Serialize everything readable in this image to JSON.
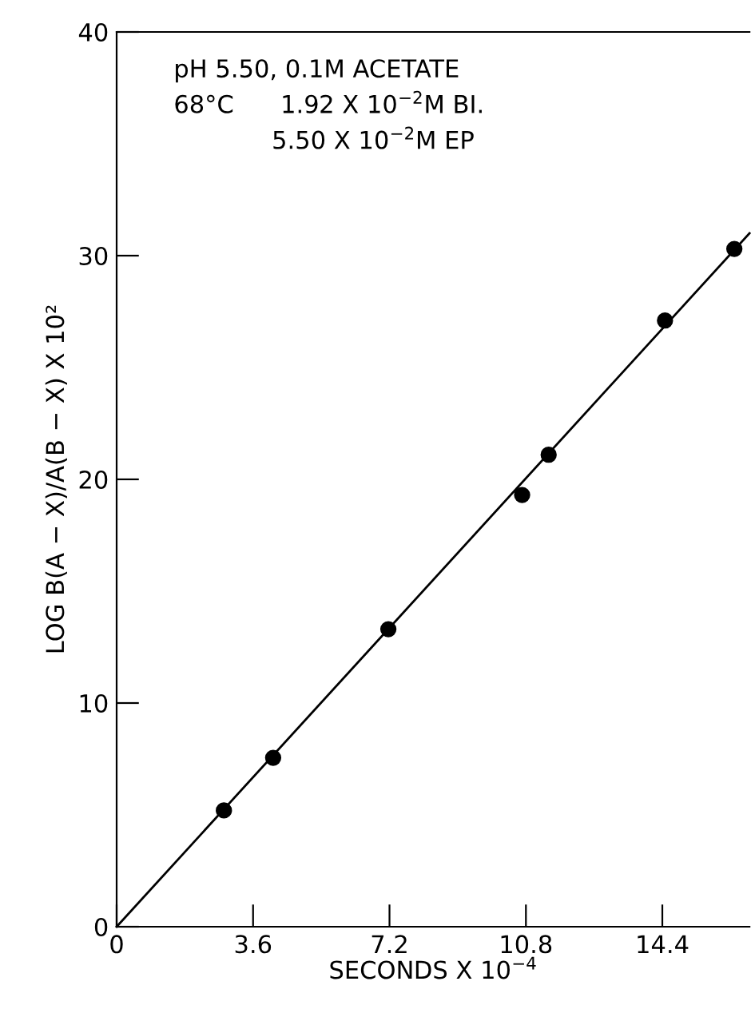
{
  "chart_data": {
    "type": "scatter",
    "xlabel": "SECONDS X 10$^{−4}$",
    "ylabel": "LOG B(A − X)/A(B − X) X 10²",
    "annotations": [
      "pH 5.50, 0.1M ACETATE",
      "68°C      1.92 X 10$^{−2}$M BI.",
      "5.50 X 10$^{−2}$M EP"
    ],
    "series": [
      {
        "color": "#000000",
        "marker": "circle",
        "x": [
          2.83,
          4.13,
          7.17,
          10.7,
          11.4,
          14.47,
          16.3
        ],
        "values": [
          5.2,
          7.55,
          13.3,
          19.3,
          21.1,
          27.1,
          30.3
        ]
      },
      {
        "type": "line",
        "color": "#000000",
        "marker": "none",
        "line_style": "solid",
        "x": [
          0,
          16.7
        ],
        "values": [
          0,
          31.0
        ]
      }
    ],
    "xlim": [
      0,
      16.7
    ],
    "ylim": [
      0,
      40
    ],
    "xticks": [
      0,
      3.6,
      7.2,
      10.8,
      14.4
    ],
    "yticks": [
      0,
      10,
      20,
      30,
      40
    ],
    "grid": false,
    "legend": false
  }
}
